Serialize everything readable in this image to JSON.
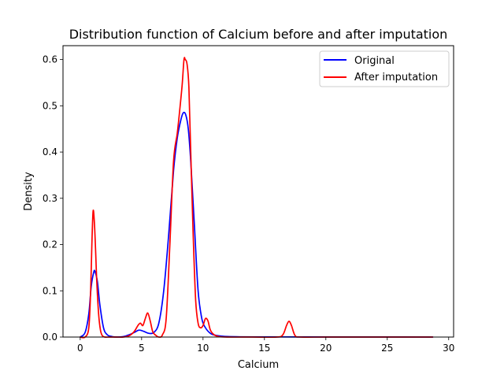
{
  "chart_data": {
    "type": "line",
    "title": "Distribution function of Calcium before and after imputation",
    "xlabel": "Calcium",
    "ylabel": "Density",
    "xlim": [
      -1.4,
      30.4
    ],
    "ylim": [
      0,
      0.63
    ],
    "xticks": [
      0,
      5,
      10,
      15,
      20,
      25,
      30
    ],
    "yticks": [
      0.0,
      0.1,
      0.2,
      0.3,
      0.4,
      0.5,
      0.6
    ],
    "ytick_labels": [
      "0.0",
      "0.1",
      "0.2",
      "0.3",
      "0.4",
      "0.5",
      "0.6"
    ],
    "legend_position": "top-right",
    "series": [
      {
        "name": "Original",
        "color": "#0000ff",
        "x": [
          0.0,
          0.4,
          0.7,
          0.9,
          1.1,
          1.2,
          1.4,
          1.6,
          1.9,
          2.2,
          2.6,
          3.0,
          3.5,
          4.0,
          4.4,
          4.8,
          5.2,
          5.6,
          6.0,
          6.4,
          6.8,
          7.2,
          7.6,
          7.9,
          8.2,
          8.4,
          8.6,
          8.8,
          9.0,
          9.3,
          9.6,
          9.9,
          10.2,
          10.6,
          11.0,
          11.5,
          12.0,
          13.0,
          15.0,
          18.0,
          22.0,
          26.0,
          28.7
        ],
        "y": [
          0.0,
          0.01,
          0.05,
          0.11,
          0.14,
          0.142,
          0.12,
          0.07,
          0.02,
          0.005,
          0.001,
          0.0,
          0.001,
          0.005,
          0.01,
          0.015,
          0.012,
          0.008,
          0.01,
          0.03,
          0.1,
          0.22,
          0.36,
          0.43,
          0.47,
          0.485,
          0.48,
          0.45,
          0.38,
          0.24,
          0.1,
          0.04,
          0.02,
          0.008,
          0.004,
          0.002,
          0.001,
          0.0005,
          0.0003,
          0.0002,
          0.0002,
          0.0002,
          0.0
        ]
      },
      {
        "name": "After imputation",
        "color": "#ff0000",
        "x": [
          0.0,
          0.4,
          0.7,
          0.85,
          0.95,
          1.05,
          1.15,
          1.25,
          1.35,
          1.5,
          1.65,
          1.8,
          2.0,
          2.4,
          3.0,
          3.5,
          4.0,
          4.4,
          4.7,
          4.9,
          5.1,
          5.3,
          5.5,
          5.7,
          5.9,
          6.1,
          6.4,
          6.7,
          7.0,
          7.3,
          7.6,
          7.9,
          8.1,
          8.3,
          8.45,
          8.55,
          8.7,
          8.85,
          9.0,
          9.2,
          9.4,
          9.6,
          9.8,
          10.0,
          10.2,
          10.4,
          10.6,
          10.9,
          11.3,
          12.0,
          14.0,
          16.0,
          16.5,
          16.8,
          17.0,
          17.2,
          17.5,
          18.0,
          20.0,
          24.0,
          28.7
        ],
        "y": [
          0.0,
          0.0,
          0.02,
          0.1,
          0.2,
          0.272,
          0.25,
          0.19,
          0.12,
          0.05,
          0.015,
          0.003,
          0.0,
          0.0,
          0.0,
          0.0,
          0.003,
          0.012,
          0.025,
          0.03,
          0.025,
          0.04,
          0.052,
          0.035,
          0.012,
          0.005,
          0.0,
          0.005,
          0.04,
          0.2,
          0.38,
          0.44,
          0.49,
          0.545,
          0.6,
          0.6,
          0.59,
          0.54,
          0.4,
          0.22,
          0.08,
          0.03,
          0.02,
          0.025,
          0.04,
          0.035,
          0.015,
          0.005,
          0.001,
          0.0,
          0.0,
          0.0,
          0.005,
          0.025,
          0.034,
          0.025,
          0.003,
          0.0,
          0.0,
          0.0,
          0.0
        ]
      }
    ]
  }
}
